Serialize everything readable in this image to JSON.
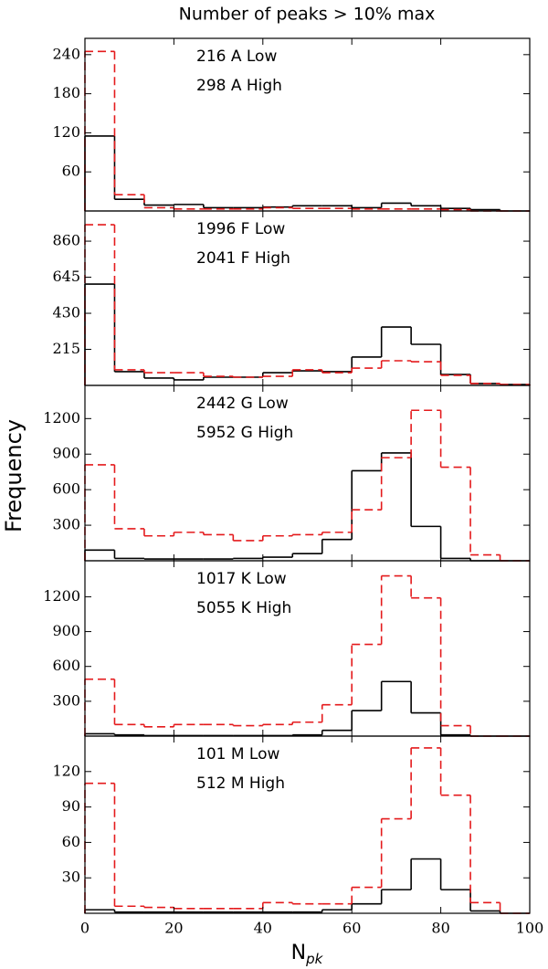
{
  "title": "Number of peaks > 10% max",
  "ylabel": "Frequency",
  "xlabel": {
    "text": "N",
    "subscript": "pk"
  },
  "chart_data": [
    {
      "type": "histogram",
      "bins": [
        0,
        6.667,
        13.333,
        20,
        26.667,
        33.333,
        40,
        46.667,
        53.333,
        60,
        66.667,
        73.333,
        80,
        86.667,
        93.333,
        100
      ],
      "series": [
        {
          "name": "216 A Low",
          "color": "#000000",
          "linestyle": "solid",
          "values": [
            115,
            18,
            9,
            10,
            5,
            5,
            6,
            8,
            8,
            5,
            12,
            8,
            4,
            2,
            0
          ]
        },
        {
          "name": "298 A High",
          "color": "#e41a1c",
          "linestyle": "dashed",
          "values": [
            245,
            25,
            5,
            3,
            3,
            3,
            5,
            4,
            4,
            3,
            3,
            3,
            2,
            0,
            0
          ]
        }
      ],
      "xlim": [
        0,
        100
      ],
      "xticks": [
        0,
        20,
        40,
        60,
        80,
        100
      ],
      "ylim": [
        0,
        265
      ],
      "yticks": [
        60,
        120,
        180,
        240
      ]
    },
    {
      "type": "histogram",
      "bins": [
        0,
        6.667,
        13.333,
        20,
        26.667,
        33.333,
        40,
        46.667,
        53.333,
        60,
        66.667,
        73.333,
        80,
        86.667,
        93.333,
        100
      ],
      "series": [
        {
          "name": "1996 F Low",
          "color": "#000000",
          "linestyle": "solid",
          "values": [
            604,
            82,
            44,
            33,
            49,
            49,
            76,
            87,
            82,
            169,
            348,
            245,
            65,
            11,
            5
          ]
        },
        {
          "name": "2041 F High",
          "color": "#e41a1c",
          "linestyle": "dashed",
          "values": [
            958,
            93,
            76,
            76,
            54,
            49,
            54,
            93,
            76,
            103,
            147,
            141,
            60,
            11,
            5
          ]
        }
      ],
      "xlim": [
        0,
        100
      ],
      "xticks": [
        0,
        20,
        40,
        60,
        80,
        100
      ],
      "ylim": [
        0,
        1040
      ],
      "yticks": [
        215,
        430,
        645,
        860
      ]
    },
    {
      "type": "histogram",
      "bins": [
        0,
        6.667,
        13.333,
        20,
        26.667,
        33.333,
        40,
        46.667,
        53.333,
        60,
        66.667,
        73.333,
        80,
        86.667,
        93.333,
        100
      ],
      "series": [
        {
          "name": "2442 G Low",
          "color": "#000000",
          "linestyle": "solid",
          "values": [
            90,
            20,
            15,
            15,
            15,
            20,
            30,
            60,
            180,
            760,
            910,
            290,
            20,
            0,
            0
          ]
        },
        {
          "name": "5952 G High",
          "color": "#e41a1c",
          "linestyle": "dashed",
          "values": [
            810,
            270,
            210,
            240,
            220,
            170,
            210,
            220,
            240,
            430,
            870,
            1270,
            790,
            50,
            0
          ]
        }
      ],
      "xlim": [
        0,
        100
      ],
      "xticks": [
        0,
        20,
        40,
        60,
        80,
        100
      ],
      "ylim": [
        0,
        1480
      ],
      "yticks": [
        300,
        600,
        900,
        1200
      ]
    },
    {
      "type": "histogram",
      "bins": [
        0,
        6.667,
        13.333,
        20,
        26.667,
        33.333,
        40,
        46.667,
        53.333,
        60,
        66.667,
        73.333,
        80,
        86.667,
        93.333,
        100
      ],
      "series": [
        {
          "name": "1017 K Low",
          "color": "#000000",
          "linestyle": "solid",
          "values": [
            20,
            10,
            5,
            5,
            5,
            5,
            5,
            10,
            50,
            220,
            470,
            200,
            10,
            0,
            0
          ]
        },
        {
          "name": "5055 K High",
          "color": "#e41a1c",
          "linestyle": "dashed",
          "values": [
            490,
            100,
            80,
            100,
            100,
            90,
            100,
            120,
            270,
            790,
            1380,
            1190,
            90,
            0,
            0
          ]
        }
      ],
      "xlim": [
        0,
        100
      ],
      "xticks": [
        0,
        20,
        40,
        60,
        80,
        100
      ],
      "ylim": [
        0,
        1510
      ],
      "yticks": [
        300,
        600,
        900,
        1200
      ]
    },
    {
      "type": "histogram",
      "bins": [
        0,
        6.667,
        13.333,
        20,
        26.667,
        33.333,
        40,
        46.667,
        53.333,
        60,
        66.667,
        73.333,
        80,
        86.667,
        93.333,
        100
      ],
      "series": [
        {
          "name": "101 M Low",
          "color": "#000000",
          "linestyle": "solid",
          "values": [
            3,
            1,
            1,
            1,
            1,
            1,
            1,
            1,
            3,
            8,
            20,
            46,
            20,
            2,
            0
          ]
        },
        {
          "name": "512 M High",
          "color": "#e41a1c",
          "linestyle": "dashed",
          "values": [
            110,
            6,
            5,
            4,
            4,
            4,
            9,
            8,
            8,
            22,
            80,
            140,
            100,
            9,
            0
          ]
        }
      ],
      "xlim": [
        0,
        100
      ],
      "xticks": [
        0,
        20,
        40,
        60,
        80,
        100
      ],
      "ylim": [
        0,
        150
      ],
      "yticks": [
        30,
        60,
        90,
        120
      ]
    }
  ]
}
